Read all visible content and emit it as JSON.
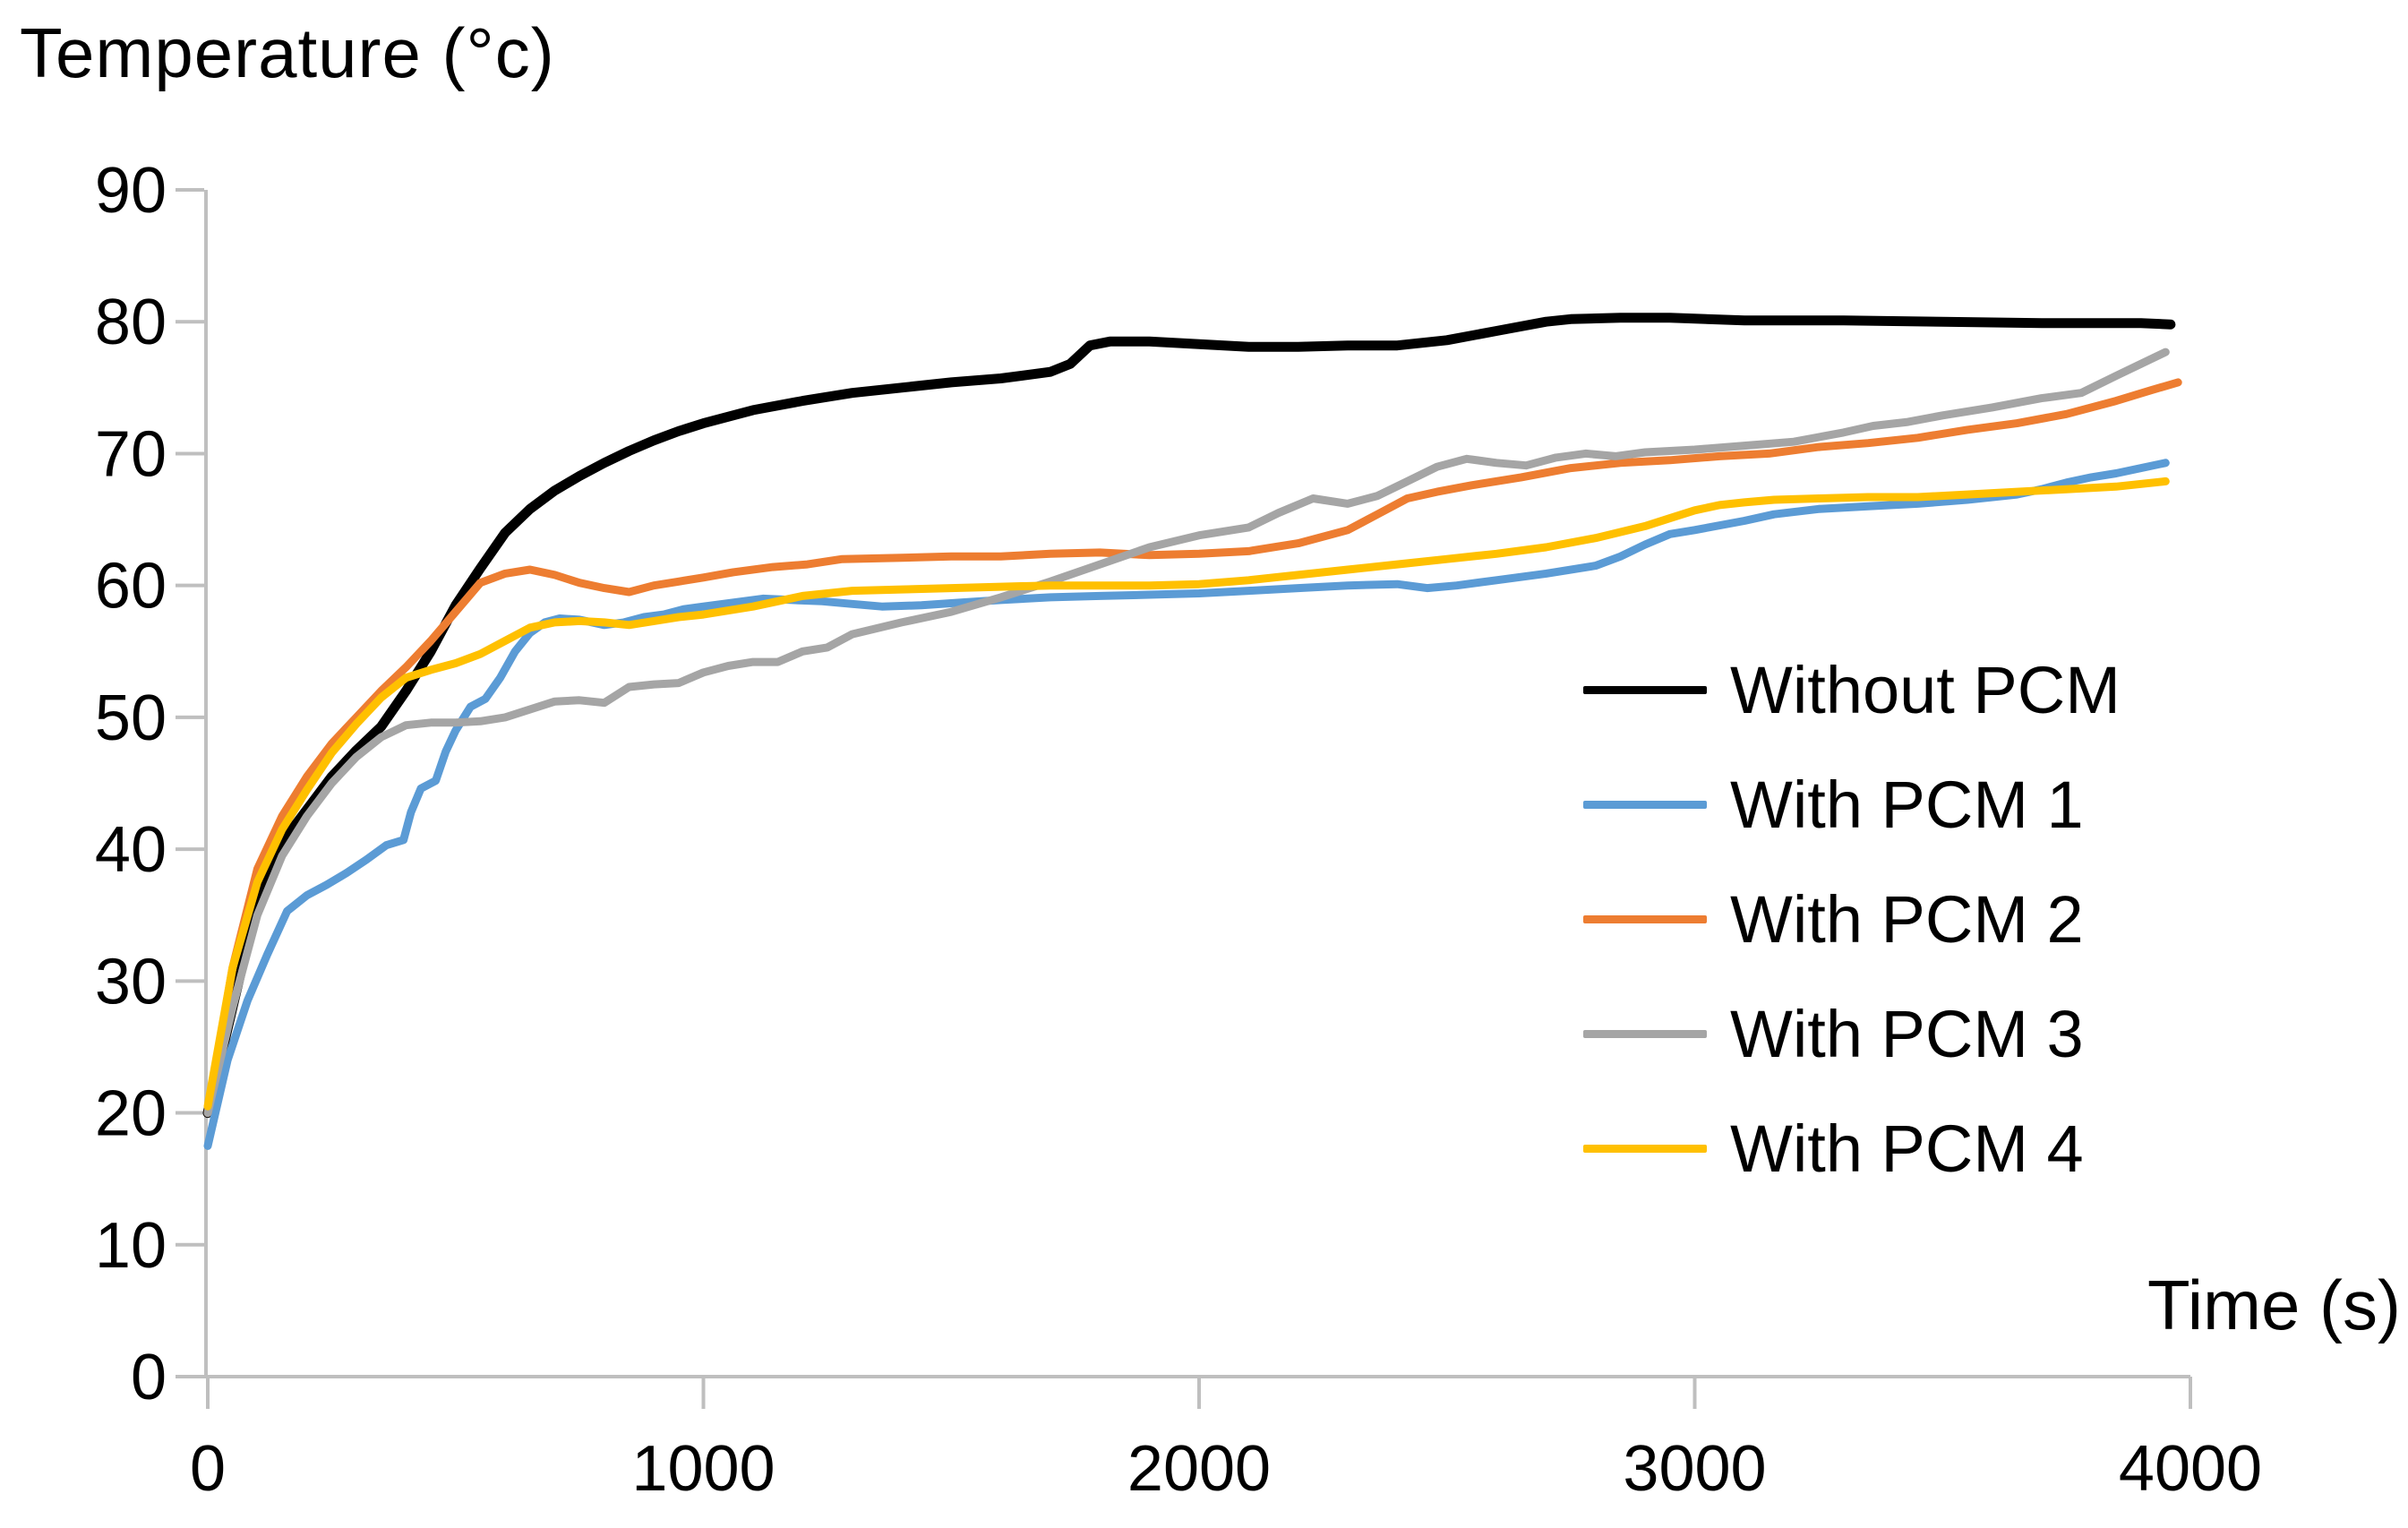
{
  "title": "Temperature (°c)",
  "x_axis_title": "Time (s)",
  "legend": {
    "items": [
      {
        "label": "Without PCM",
        "color": "#000000"
      },
      {
        "label": "With PCM 1",
        "color": "#5B9BD5"
      },
      {
        "label": "With PCM 2",
        "color": "#ED7D31"
      },
      {
        "label": "With PCM 3",
        "color": "#A5A5A5"
      },
      {
        "label": "With PCM 4",
        "color": "#FFC000"
      }
    ]
  },
  "chart_data": {
    "type": "line",
    "title": "Temperature (°c)",
    "xlabel": "Time (s)",
    "ylabel": "Temperature (°c)",
    "xlim": [
      0,
      4000
    ],
    "ylim": [
      0,
      90
    ],
    "x_ticks": [
      0,
      1000,
      2000,
      3000,
      4000
    ],
    "y_ticks": [
      90,
      80,
      70,
      60,
      50,
      40,
      30,
      20,
      10,
      0
    ],
    "grid": false,
    "axis_color": "#BFBFBF",
    "legend_position": "right-middle",
    "series": [
      {
        "name": "Without PCM",
        "color": "#000000",
        "stroke_width": 11,
        "points": [
          [
            0,
            20
          ],
          [
            50,
            28
          ],
          [
            100,
            36
          ],
          [
            150,
            40.5
          ],
          [
            200,
            43
          ],
          [
            250,
            45.5
          ],
          [
            300,
            47.5
          ],
          [
            350,
            49.3
          ],
          [
            400,
            52
          ],
          [
            450,
            55
          ],
          [
            500,
            58.5
          ],
          [
            550,
            61.3
          ],
          [
            600,
            64
          ],
          [
            650,
            65.8
          ],
          [
            700,
            67.2
          ],
          [
            750,
            68.3
          ],
          [
            800,
            69.3
          ],
          [
            850,
            70.2
          ],
          [
            900,
            71
          ],
          [
            950,
            71.7
          ],
          [
            1000,
            72.3
          ],
          [
            1100,
            73.3
          ],
          [
            1200,
            74
          ],
          [
            1300,
            74.6
          ],
          [
            1400,
            75
          ],
          [
            1500,
            75.4
          ],
          [
            1600,
            75.7
          ],
          [
            1700,
            76.2
          ],
          [
            1740,
            76.8
          ],
          [
            1780,
            78.2
          ],
          [
            1820,
            78.5
          ],
          [
            1900,
            78.5
          ],
          [
            2000,
            78.3
          ],
          [
            2100,
            78.1
          ],
          [
            2200,
            78.1
          ],
          [
            2300,
            78.2
          ],
          [
            2400,
            78.2
          ],
          [
            2500,
            78.6
          ],
          [
            2600,
            79.3
          ],
          [
            2700,
            80
          ],
          [
            2750,
            80.2
          ],
          [
            2850,
            80.3
          ],
          [
            2950,
            80.3
          ],
          [
            3100,
            80.1
          ],
          [
            3300,
            80.1
          ],
          [
            3500,
            80
          ],
          [
            3700,
            79.9
          ],
          [
            3900,
            79.9
          ],
          [
            3960,
            79.8
          ]
        ]
      },
      {
        "name": "With PCM 1",
        "color": "#5B9BD5",
        "stroke_width": 9,
        "points": [
          [
            0,
            17.5
          ],
          [
            40,
            24
          ],
          [
            80,
            28.5
          ],
          [
            120,
            32
          ],
          [
            160,
            35.3
          ],
          [
            200,
            36.5
          ],
          [
            240,
            37.3
          ],
          [
            280,
            38.2
          ],
          [
            320,
            39.2
          ],
          [
            360,
            40.3
          ],
          [
            395,
            40.7
          ],
          [
            410,
            42.8
          ],
          [
            430,
            44.6
          ],
          [
            460,
            45.2
          ],
          [
            480,
            47.4
          ],
          [
            500,
            49
          ],
          [
            530,
            50.8
          ],
          [
            560,
            51.4
          ],
          [
            590,
            53
          ],
          [
            620,
            55
          ],
          [
            650,
            56.4
          ],
          [
            680,
            57.2
          ],
          [
            710,
            57.5
          ],
          [
            750,
            57.4
          ],
          [
            800,
            57
          ],
          [
            840,
            57.2
          ],
          [
            880,
            57.6
          ],
          [
            920,
            57.8
          ],
          [
            960,
            58.2
          ],
          [
            1000,
            58.4
          ],
          [
            1060,
            58.7
          ],
          [
            1120,
            59
          ],
          [
            1180,
            58.9
          ],
          [
            1240,
            58.8
          ],
          [
            1300,
            58.6
          ],
          [
            1360,
            58.4
          ],
          [
            1440,
            58.5
          ],
          [
            1520,
            58.7
          ],
          [
            1600,
            58.9
          ],
          [
            1700,
            59.1
          ],
          [
            1800,
            59.2
          ],
          [
            1900,
            59.3
          ],
          [
            2000,
            59.4
          ],
          [
            2100,
            59.6
          ],
          [
            2200,
            59.8
          ],
          [
            2300,
            60
          ],
          [
            2400,
            60.1
          ],
          [
            2460,
            59.8
          ],
          [
            2520,
            60
          ],
          [
            2600,
            60.4
          ],
          [
            2700,
            60.9
          ],
          [
            2800,
            61.5
          ],
          [
            2850,
            62.2
          ],
          [
            2900,
            63.1
          ],
          [
            2950,
            63.9
          ],
          [
            3000,
            64.2
          ],
          [
            3100,
            64.9
          ],
          [
            3160,
            65.4
          ],
          [
            3250,
            65.8
          ],
          [
            3350,
            66
          ],
          [
            3450,
            66.2
          ],
          [
            3550,
            66.5
          ],
          [
            3650,
            66.9
          ],
          [
            3700,
            67.3
          ],
          [
            3750,
            67.8
          ],
          [
            3800,
            68.2
          ],
          [
            3850,
            68.5
          ],
          [
            3900,
            68.9
          ],
          [
            3950,
            69.3
          ]
        ]
      },
      {
        "name": "With PCM 2",
        "color": "#ED7D31",
        "stroke_width": 9,
        "points": [
          [
            0,
            20
          ],
          [
            50,
            31
          ],
          [
            100,
            38.5
          ],
          [
            150,
            42.5
          ],
          [
            200,
            45.5
          ],
          [
            250,
            48
          ],
          [
            300,
            50
          ],
          [
            350,
            52
          ],
          [
            400,
            53.8
          ],
          [
            450,
            55.8
          ],
          [
            500,
            58
          ],
          [
            550,
            60.2
          ],
          [
            600,
            60.9
          ],
          [
            650,
            61.2
          ],
          [
            700,
            60.8
          ],
          [
            750,
            60.2
          ],
          [
            800,
            59.8
          ],
          [
            850,
            59.5
          ],
          [
            900,
            60
          ],
          [
            950,
            60.3
          ],
          [
            1000,
            60.6
          ],
          [
            1060,
            61
          ],
          [
            1140,
            61.4
          ],
          [
            1210,
            61.6
          ],
          [
            1280,
            62
          ],
          [
            1400,
            62.1
          ],
          [
            1500,
            62.2
          ],
          [
            1600,
            62.2
          ],
          [
            1700,
            62.4
          ],
          [
            1800,
            62.5
          ],
          [
            1900,
            62.3
          ],
          [
            2000,
            62.4
          ],
          [
            2100,
            62.6
          ],
          [
            2200,
            63.2
          ],
          [
            2300,
            64.2
          ],
          [
            2360,
            65.4
          ],
          [
            2420,
            66.6
          ],
          [
            2480,
            67.1
          ],
          [
            2550,
            67.6
          ],
          [
            2650,
            68.2
          ],
          [
            2750,
            68.9
          ],
          [
            2850,
            69.3
          ],
          [
            2950,
            69.5
          ],
          [
            3050,
            69.8
          ],
          [
            3150,
            70
          ],
          [
            3250,
            70.5
          ],
          [
            3350,
            70.8
          ],
          [
            3450,
            71.2
          ],
          [
            3550,
            71.8
          ],
          [
            3650,
            72.3
          ],
          [
            3750,
            73
          ],
          [
            3850,
            74
          ],
          [
            3920,
            74.8
          ],
          [
            3975,
            75.4
          ]
        ]
      },
      {
        "name": "With PCM 3",
        "color": "#A5A5A5",
        "stroke_width": 9,
        "points": [
          [
            0,
            20
          ],
          [
            50,
            28
          ],
          [
            100,
            35
          ],
          [
            150,
            39.5
          ],
          [
            200,
            42.5
          ],
          [
            250,
            45
          ],
          [
            300,
            47
          ],
          [
            350,
            48.5
          ],
          [
            400,
            49.4
          ],
          [
            450,
            49.6
          ],
          [
            500,
            49.6
          ],
          [
            550,
            49.7
          ],
          [
            600,
            50
          ],
          [
            650,
            50.6
          ],
          [
            700,
            51.2
          ],
          [
            750,
            51.3
          ],
          [
            800,
            51.1
          ],
          [
            850,
            52.3
          ],
          [
            900,
            52.5
          ],
          [
            950,
            52.6
          ],
          [
            1000,
            53.4
          ],
          [
            1050,
            53.9
          ],
          [
            1100,
            54.2
          ],
          [
            1150,
            54.2
          ],
          [
            1200,
            55
          ],
          [
            1250,
            55.3
          ],
          [
            1300,
            56.3
          ],
          [
            1400,
            57.2
          ],
          [
            1500,
            58
          ],
          [
            1600,
            59.1
          ],
          [
            1700,
            60.3
          ],
          [
            1800,
            61.6
          ],
          [
            1900,
            62.9
          ],
          [
            2000,
            63.8
          ],
          [
            2100,
            64.4
          ],
          [
            2160,
            65.5
          ],
          [
            2230,
            66.6
          ],
          [
            2300,
            66.2
          ],
          [
            2360,
            66.8
          ],
          [
            2420,
            67.9
          ],
          [
            2480,
            69
          ],
          [
            2540,
            69.6
          ],
          [
            2600,
            69.3
          ],
          [
            2660,
            69.1
          ],
          [
            2720,
            69.7
          ],
          [
            2780,
            70
          ],
          [
            2840,
            69.8
          ],
          [
            2900,
            70.1
          ],
          [
            3000,
            70.3
          ],
          [
            3100,
            70.6
          ],
          [
            3200,
            70.9
          ],
          [
            3300,
            71.6
          ],
          [
            3360,
            72.1
          ],
          [
            3430,
            72.4
          ],
          [
            3500,
            72.9
          ],
          [
            3600,
            73.5
          ],
          [
            3700,
            74.2
          ],
          [
            3780,
            74.6
          ],
          [
            3850,
            75.9
          ],
          [
            3900,
            76.8
          ],
          [
            3950,
            77.7
          ]
        ]
      },
      {
        "name": "With PCM 4",
        "color": "#FFC000",
        "stroke_width": 9,
        "points": [
          [
            0,
            20.5
          ],
          [
            50,
            31
          ],
          [
            100,
            37.5
          ],
          [
            150,
            41.5
          ],
          [
            200,
            44.5
          ],
          [
            250,
            47.3
          ],
          [
            300,
            49.5
          ],
          [
            350,
            51.5
          ],
          [
            400,
            53
          ],
          [
            450,
            53.6
          ],
          [
            500,
            54.1
          ],
          [
            550,
            54.8
          ],
          [
            600,
            55.8
          ],
          [
            650,
            56.8
          ],
          [
            700,
            57.2
          ],
          [
            750,
            57.3
          ],
          [
            800,
            57.2
          ],
          [
            850,
            57
          ],
          [
            900,
            57.3
          ],
          [
            950,
            57.6
          ],
          [
            1000,
            57.8
          ],
          [
            1100,
            58.4
          ],
          [
            1200,
            59.2
          ],
          [
            1300,
            59.6
          ],
          [
            1400,
            59.7
          ],
          [
            1500,
            59.8
          ],
          [
            1600,
            59.9
          ],
          [
            1700,
            60
          ],
          [
            1800,
            60
          ],
          [
            1900,
            60
          ],
          [
            2000,
            60.1
          ],
          [
            2100,
            60.4
          ],
          [
            2200,
            60.8
          ],
          [
            2300,
            61.2
          ],
          [
            2400,
            61.6
          ],
          [
            2500,
            62
          ],
          [
            2600,
            62.4
          ],
          [
            2700,
            62.9
          ],
          [
            2800,
            63.6
          ],
          [
            2900,
            64.5
          ],
          [
            2950,
            65.1
          ],
          [
            3000,
            65.7
          ],
          [
            3050,
            66.1
          ],
          [
            3100,
            66.3
          ],
          [
            3160,
            66.5
          ],
          [
            3250,
            66.6
          ],
          [
            3350,
            66.7
          ],
          [
            3450,
            66.7
          ],
          [
            3550,
            66.9
          ],
          [
            3650,
            67.1
          ],
          [
            3750,
            67.3
          ],
          [
            3850,
            67.5
          ],
          [
            3950,
            67.9
          ]
        ]
      }
    ]
  }
}
